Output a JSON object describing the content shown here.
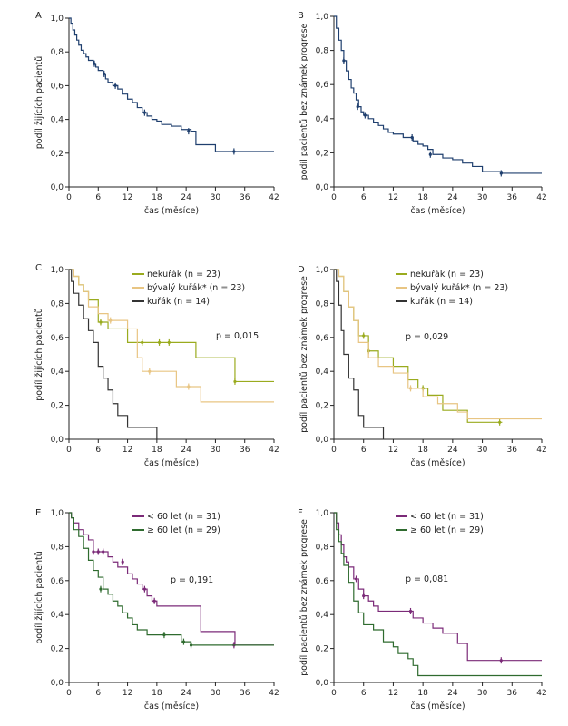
{
  "chart_data": [
    {
      "panel": "A",
      "type": "line",
      "ylabel": "podíl žijících pacientů",
      "xlabel": "čas (měsíce)",
      "xlim": [
        0,
        42
      ],
      "ylim": [
        0,
        1
      ],
      "xticks": [
        "0",
        "6",
        "12",
        "18",
        "24",
        "30",
        "36",
        "42"
      ],
      "yticks": [
        "0,0",
        "0,2",
        "0,4",
        "0,6",
        "0,8",
        "1,0"
      ],
      "pvalue": "",
      "series": [
        {
          "name": "",
          "color": "#1f3f6e",
          "x": [
            0,
            0.4,
            0.8,
            1.2,
            1.6,
            2.0,
            2.5,
            3.0,
            3.5,
            4.0,
            5.0,
            5.5,
            6.0,
            7.0,
            7.5,
            8.0,
            9.0,
            10.0,
            11.0,
            12.0,
            13.0,
            14.0,
            15.0,
            16.0,
            17.0,
            18.0,
            19.0,
            21.0,
            23.0,
            25.0,
            26.0,
            28.0,
            30.0,
            34.0,
            42.0
          ],
          "y": [
            1.0,
            0.97,
            0.93,
            0.9,
            0.87,
            0.84,
            0.81,
            0.79,
            0.77,
            0.75,
            0.73,
            0.71,
            0.69,
            0.67,
            0.64,
            0.62,
            0.6,
            0.58,
            0.55,
            0.52,
            0.5,
            0.47,
            0.44,
            0.42,
            0.4,
            0.39,
            0.37,
            0.36,
            0.34,
            0.33,
            0.25,
            0.25,
            0.21,
            0.21,
            0.21
          ],
          "censored_x": [
            5.2,
            7.2,
            9.5,
            15.5,
            24.5,
            33.8
          ],
          "censored_y": [
            0.73,
            0.67,
            0.6,
            0.44,
            0.33,
            0.21
          ]
        }
      ]
    },
    {
      "panel": "B",
      "type": "line",
      "ylabel": "podíl pacientů bez známek progrese",
      "xlabel": "čas (měsíce)",
      "xlim": [
        0,
        42
      ],
      "ylim": [
        0,
        1
      ],
      "xticks": [
        "0",
        "6",
        "12",
        "18",
        "24",
        "30",
        "36",
        "42"
      ],
      "yticks": [
        "0,0",
        "0,2",
        "0,4",
        "0,6",
        "0,8",
        "1,0"
      ],
      "pvalue": "",
      "series": [
        {
          "name": "",
          "color": "#1f3f6e",
          "x": [
            0,
            0.5,
            1.0,
            1.5,
            2.0,
            2.5,
            3.0,
            3.5,
            4.0,
            4.5,
            5.0,
            5.5,
            6.0,
            7.0,
            8.0,
            9.0,
            10.0,
            11.0,
            12.0,
            14.0,
            16.0,
            17.0,
            18.0,
            19.0,
            20.0,
            22.0,
            24.0,
            26.0,
            28.0,
            30.0,
            34.0,
            42.0
          ],
          "y": [
            1.0,
            0.93,
            0.86,
            0.8,
            0.74,
            0.68,
            0.63,
            0.58,
            0.55,
            0.51,
            0.47,
            0.44,
            0.42,
            0.4,
            0.38,
            0.36,
            0.34,
            0.32,
            0.31,
            0.29,
            0.27,
            0.25,
            0.24,
            0.22,
            0.19,
            0.17,
            0.16,
            0.14,
            0.12,
            0.09,
            0.08,
            0.08
          ],
          "censored_x": [
            2.0,
            4.8,
            6.3,
            15.8,
            19.5,
            33.8
          ],
          "censored_y": [
            0.74,
            0.47,
            0.42,
            0.29,
            0.19,
            0.08
          ]
        }
      ]
    },
    {
      "panel": "C",
      "type": "line",
      "ylabel": "podíl žijících pacientů",
      "xlabel": "čas (měsíce)",
      "xlim": [
        0,
        42
      ],
      "ylim": [
        0,
        1
      ],
      "xticks": [
        "0",
        "6",
        "12",
        "18",
        "24",
        "30",
        "36",
        "42"
      ],
      "yticks": [
        "0,0",
        "0,2",
        "0,4",
        "0,6",
        "0,8",
        "1,0"
      ],
      "pvalue": "p = 0,015",
      "legend_position": "top-right",
      "series": [
        {
          "name": "nekuřák (n = 23)",
          "color": "#9aab1e",
          "x": [
            0,
            1.0,
            2.0,
            3.0,
            4.0,
            6.0,
            8.0,
            12.0,
            18.0,
            26.0,
            34.0,
            42.0
          ],
          "y": [
            1.0,
            0.96,
            0.91,
            0.87,
            0.82,
            0.69,
            0.65,
            0.57,
            0.57,
            0.48,
            0.34,
            0.34
          ],
          "censored_x": [
            6.5,
            15.0,
            18.5,
            20.5,
            34.0
          ],
          "censored_y": [
            0.69,
            0.57,
            0.57,
            0.57,
            0.34
          ]
        },
        {
          "name": "bývalý kuřák* (n = 23)",
          "color": "#e8c583",
          "x": [
            0,
            1.0,
            2.0,
            3.0,
            4.0,
            6.0,
            8.0,
            12.0,
            14.0,
            15.0,
            18.0,
            22.0,
            27.0,
            34.0,
            42.0
          ],
          "y": [
            1.0,
            0.96,
            0.91,
            0.87,
            0.78,
            0.74,
            0.7,
            0.65,
            0.48,
            0.4,
            0.4,
            0.31,
            0.22,
            0.22,
            0.22
          ],
          "censored_x": [
            8.5,
            16.5,
            24.5
          ],
          "censored_y": [
            0.7,
            0.4,
            0.31
          ]
        },
        {
          "name": "kuřák (n = 14)",
          "color": "#333333",
          "x": [
            0,
            0.5,
            1.0,
            2.0,
            3.0,
            4.0,
            5.0,
            6.0,
            7.0,
            8.0,
            9.0,
            10.0,
            12.0,
            14.0,
            18.0
          ],
          "y": [
            1.0,
            0.93,
            0.86,
            0.79,
            0.71,
            0.64,
            0.57,
            0.43,
            0.36,
            0.29,
            0.21,
            0.14,
            0.07,
            0.07,
            0.0
          ],
          "censored_x": [],
          "censored_y": []
        }
      ]
    },
    {
      "panel": "D",
      "type": "line",
      "ylabel": "podíl pacientů bez známek progrese",
      "xlabel": "čas (měsíce)",
      "xlim": [
        0,
        42
      ],
      "ylim": [
        0,
        1
      ],
      "xticks": [
        "0",
        "6",
        "12",
        "18",
        "24",
        "30",
        "36",
        "42"
      ],
      "yticks": [
        "0,0",
        "0,2",
        "0,4",
        "0,6",
        "0,8",
        "1,0"
      ],
      "pvalue": "p = 0,029",
      "legend_position": "top-right",
      "series": [
        {
          "name": "nekuřák (n = 23)",
          "color": "#9aab1e",
          "x": [
            0,
            1.0,
            2.0,
            3.0,
            4.0,
            5.0,
            7.0,
            9.0,
            12.0,
            15.0,
            17.0,
            19.0,
            22.0,
            27.0,
            34.0
          ],
          "y": [
            1.0,
            0.96,
            0.87,
            0.78,
            0.7,
            0.61,
            0.52,
            0.48,
            0.43,
            0.35,
            0.3,
            0.26,
            0.17,
            0.1,
            0.1
          ],
          "censored_x": [
            6.0,
            7.0,
            18.0,
            33.5
          ],
          "censored_y": [
            0.61,
            0.52,
            0.3,
            0.1
          ]
        },
        {
          "name": "bývalý kuřák* (n = 23)",
          "color": "#e8c583",
          "x": [
            0,
            1.0,
            2.0,
            3.0,
            4.0,
            5.0,
            7.0,
            9.0,
            12.0,
            15.0,
            18.0,
            21.0,
            25.0,
            27.0,
            42.0
          ],
          "y": [
            1.0,
            0.96,
            0.87,
            0.78,
            0.7,
            0.57,
            0.48,
            0.43,
            0.39,
            0.3,
            0.25,
            0.21,
            0.16,
            0.12,
            0.12
          ],
          "censored_x": [
            15.5
          ],
          "censored_y": [
            0.3
          ]
        },
        {
          "name": "kuřák (n = 14)",
          "color": "#333333",
          "x": [
            0,
            0.5,
            1.0,
            1.5,
            2.0,
            3.0,
            4.0,
            5.0,
            6.0,
            8.0,
            10.0
          ],
          "y": [
            1.0,
            0.93,
            0.79,
            0.64,
            0.5,
            0.36,
            0.29,
            0.14,
            0.07,
            0.07,
            0.0
          ],
          "censored_x": [],
          "censored_y": []
        }
      ]
    },
    {
      "panel": "E",
      "type": "line",
      "ylabel": "podíl žijících pacientů",
      "xlabel": "čas (měsíce)",
      "xlim": [
        0,
        42
      ],
      "ylim": [
        0,
        1
      ],
      "xticks": [
        "0",
        "6",
        "12",
        "18",
        "24",
        "30",
        "36",
        "42"
      ],
      "yticks": [
        "0,0",
        "0,2",
        "0,4",
        "0,6",
        "0,8",
        "1,0"
      ],
      "pvalue": "p = 0,191",
      "legend_position": "top-right",
      "series": [
        {
          "name": "< 60 let (n = 31)",
          "color": "#7b2a78",
          "x": [
            0,
            0.5,
            1.0,
            2.0,
            3.0,
            4.0,
            5.0,
            8.0,
            9.0,
            10.0,
            12.0,
            13.0,
            14.0,
            15.0,
            16.0,
            17.0,
            18.0,
            21.0,
            27.0,
            34.0,
            42.0
          ],
          "y": [
            1.0,
            0.97,
            0.94,
            0.9,
            0.87,
            0.84,
            0.77,
            0.74,
            0.71,
            0.68,
            0.64,
            0.61,
            0.58,
            0.55,
            0.51,
            0.48,
            0.45,
            0.45,
            0.3,
            0.22,
            0.22
          ],
          "censored_x": [
            5.0,
            6.0,
            7.0,
            11.0,
            15.5,
            17.5,
            33.8
          ],
          "censored_y": [
            0.77,
            0.77,
            0.77,
            0.71,
            0.55,
            0.48,
            0.22
          ]
        },
        {
          "name": "≥ 60 let (n = 29)",
          "color": "#2f6b2f",
          "x": [
            0,
            0.5,
            1.0,
            2.0,
            3.0,
            4.0,
            5.0,
            6.0,
            7.0,
            8.0,
            9.0,
            10.0,
            11.0,
            12.0,
            13.0,
            14.0,
            16.0,
            20.0,
            23.0,
            25.0,
            42.0
          ],
          "y": [
            1.0,
            0.97,
            0.9,
            0.86,
            0.79,
            0.72,
            0.66,
            0.62,
            0.55,
            0.52,
            0.48,
            0.45,
            0.41,
            0.38,
            0.34,
            0.31,
            0.28,
            0.28,
            0.24,
            0.22,
            0.22
          ],
          "censored_x": [
            6.5,
            19.5,
            23.5,
            25.0
          ],
          "censored_y": [
            0.55,
            0.28,
            0.24,
            0.22
          ]
        }
      ]
    },
    {
      "panel": "F",
      "type": "line",
      "ylabel": "podíl pacientů bez známek progrese",
      "xlabel": "čas (měsíce)",
      "xlim": [
        0,
        42
      ],
      "ylim": [
        0,
        1
      ],
      "xticks": [
        "0",
        "6",
        "12",
        "18",
        "24",
        "30",
        "36",
        "42"
      ],
      "yticks": [
        "0,0",
        "0,2",
        "0,4",
        "0,6",
        "0,8",
        "1,0"
      ],
      "pvalue": "p = 0,081",
      "legend_position": "top-right",
      "series": [
        {
          "name": "< 60 let (n = 31)",
          "color": "#7b2a78",
          "x": [
            0,
            0.5,
            1.0,
            1.5,
            2.0,
            2.5,
            3.0,
            4.0,
            5.0,
            6.0,
            7.0,
            8.0,
            9.0,
            12.0,
            16.0,
            17.0,
            18.0,
            20.0,
            22.0,
            25.0,
            27.0,
            34.0,
            42.0
          ],
          "y": [
            1.0,
            0.94,
            0.87,
            0.81,
            0.74,
            0.71,
            0.68,
            0.61,
            0.55,
            0.51,
            0.48,
            0.45,
            0.42,
            0.42,
            0.38,
            0.38,
            0.35,
            0.32,
            0.29,
            0.23,
            0.13,
            0.13,
            0.13
          ],
          "censored_x": [
            4.5,
            6.0,
            15.5,
            33.8
          ],
          "censored_y": [
            0.61,
            0.51,
            0.42,
            0.13
          ]
        },
        {
          "name": "≥ 60 let (n = 29)",
          "color": "#2f6b2f",
          "x": [
            0,
            0.5,
            1.0,
            1.5,
            2.0,
            3.0,
            4.0,
            5.0,
            6.0,
            8.0,
            10.0,
            12.0,
            13.0,
            15.0,
            16.0,
            17.0,
            42.0
          ],
          "y": [
            1.0,
            0.9,
            0.83,
            0.76,
            0.69,
            0.59,
            0.48,
            0.41,
            0.34,
            0.31,
            0.24,
            0.21,
            0.17,
            0.14,
            0.1,
            0.04,
            0.04
          ],
          "censored_x": [],
          "censored_y": []
        }
      ]
    }
  ]
}
